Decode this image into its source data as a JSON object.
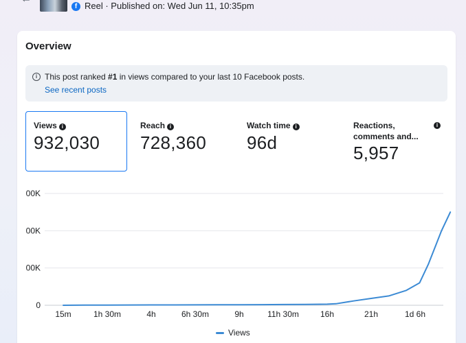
{
  "header": {
    "post_meta": "Reel · Published on: Wed Jun 11, 10:35pm",
    "fb_glyph": "f"
  },
  "overview": {
    "title": "Overview",
    "notice": {
      "prefix": "This post ranked ",
      "rank": "#1",
      "suffix": " in views compared to your last 10 Facebook posts.",
      "link": "See recent posts"
    },
    "metrics": [
      {
        "label": "Views",
        "value": "932,030",
        "selected": true
      },
      {
        "label": "Reach",
        "value": "728,360",
        "selected": false
      },
      {
        "label": "Watch time",
        "value": "96d",
        "selected": false
      },
      {
        "label": "Reactions, comments and...",
        "value": "5,957",
        "selected": false
      }
    ]
  },
  "chart_data": {
    "type": "line",
    "y_tick_labels": [
      "00K",
      "00K",
      "00K",
      "0"
    ],
    "y_tick_values": [
      900000,
      600000,
      300000,
      0
    ],
    "ylim": [
      0,
      900000
    ],
    "x_tick_labels": [
      "15m",
      "1h 30m",
      "4h",
      "6h 30m",
      "9h",
      "11h 30m",
      "16h",
      "21h",
      "1d 6h"
    ],
    "x_tick_positions": [
      0,
      1,
      2,
      3,
      4,
      5,
      6,
      7,
      8
    ],
    "xlim": [
      0,
      8.9
    ],
    "series": [
      {
        "name": "Views",
        "color": "#3b8ad4",
        "x": [
          0,
          0.5,
          1,
          1.5,
          2,
          2.5,
          3,
          3.5,
          4,
          4.5,
          5,
          5.5,
          6,
          6.2,
          6.6,
          7.0,
          7.4,
          7.8,
          8.1,
          8.3,
          8.6,
          8.8
        ],
        "values": [
          0,
          1000,
          1500,
          2000,
          2500,
          3000,
          3500,
          4000,
          4500,
          5000,
          6000,
          7000,
          9000,
          12000,
          35000,
          55000,
          75000,
          120000,
          180000,
          330000,
          600000,
          750000
        ]
      }
    ],
    "legend_position": "bottom",
    "grid": true
  }
}
